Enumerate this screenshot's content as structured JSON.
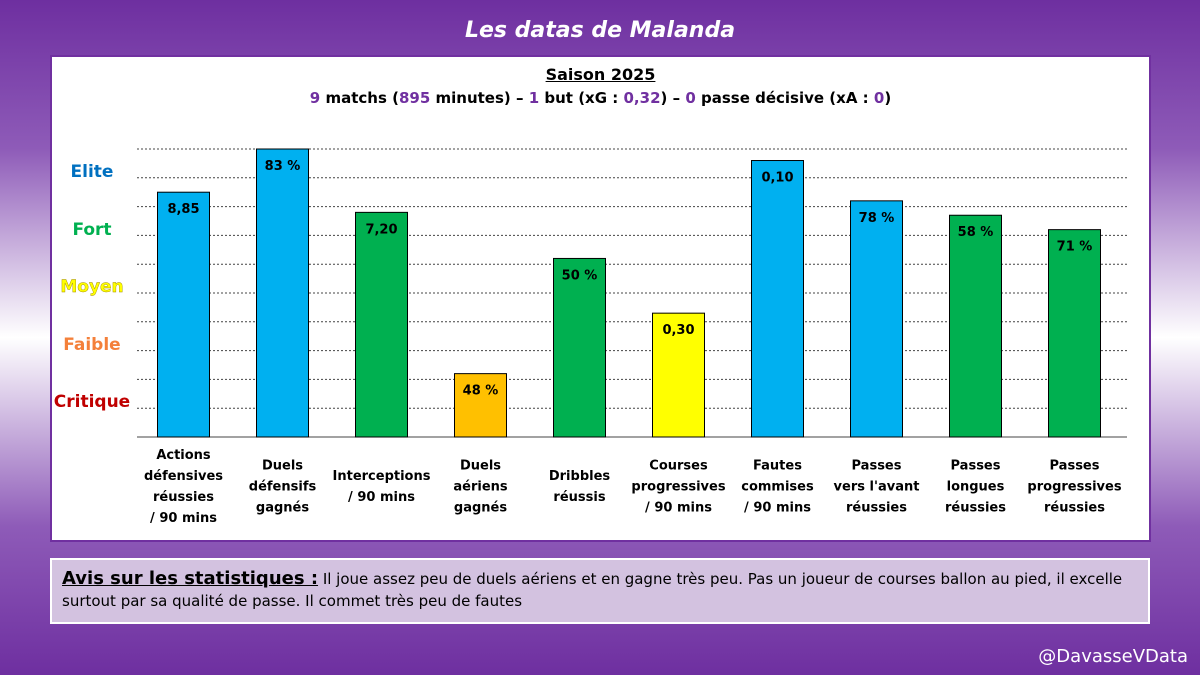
{
  "title": "Les datas de Malanda",
  "season": "Saison 2025",
  "summary": {
    "matches": "9",
    "matches_label": "matchs (",
    "minutes": "895",
    "minutes_label": "minutes) –",
    "goals": "1",
    "goals_label": "but (xG :",
    "xg": "0,32",
    "mid_label": ") –",
    "assists": "0",
    "assists_label": "passe décisive (xA :",
    "xa": "0",
    "end_label": ")"
  },
  "chart_data": {
    "type": "bar",
    "levels": [
      {
        "name": "Elite",
        "color": "#0070c0"
      },
      {
        "name": "Fort",
        "color": "#00b050"
      },
      {
        "name": "Moyen",
        "color": "#ffff00"
      },
      {
        "name": "Faible",
        "color": "#f4803a"
      },
      {
        "name": "Critique",
        "color": "#c00000"
      }
    ],
    "ylim": [
      0,
      10
    ],
    "gridlines": 10,
    "bars": [
      {
        "label": [
          "Actions",
          "défensives",
          "réussies",
          "/ 90 mins"
        ],
        "value_label": "8,85",
        "level": 8.5,
        "color": "#00b0f0"
      },
      {
        "label": [
          "Duels",
          "défensifs",
          "gagnés"
        ],
        "value_label": "83 %",
        "level": 10.0,
        "color": "#00b0f0"
      },
      {
        "label": [
          "Interceptions",
          "/ 90 mins"
        ],
        "value_label": "7,20",
        "level": 7.8,
        "color": "#00b050"
      },
      {
        "label": [
          "Duels",
          "aériens",
          "gagnés"
        ],
        "value_label": "48 %",
        "level": 2.2,
        "color": "#ffc000"
      },
      {
        "label": [
          "Dribbles",
          "réussis"
        ],
        "value_label": "50 %",
        "level": 6.2,
        "color": "#00b050"
      },
      {
        "label": [
          "Courses",
          "progressives",
          "/ 90 mins"
        ],
        "value_label": "0,30",
        "level": 4.3,
        "color": "#ffff00"
      },
      {
        "label": [
          "Fautes",
          "commises",
          "/ 90 mins"
        ],
        "value_label": "0,10",
        "level": 9.6,
        "color": "#00b0f0"
      },
      {
        "label": [
          "Passes",
          "vers l'avant",
          "réussies"
        ],
        "value_label": "78 %",
        "level": 8.2,
        "color": "#00b0f0"
      },
      {
        "label": [
          "Passes",
          "longues",
          "réussies"
        ],
        "value_label": "58 %",
        "level": 7.7,
        "color": "#00b050"
      },
      {
        "label": [
          "Passes",
          "progressives",
          "réussies"
        ],
        "value_label": "71 %",
        "level": 7.2,
        "color": "#00b050"
      }
    ]
  },
  "comment": {
    "heading": "Avis sur les statistiques :",
    "text": "Il joue assez peu de duels aériens et en gagne très peu. Pas un joueur de courses ballon au pied, il excelle surtout par sa qualité de passe. Il commet très peu de fautes"
  },
  "credit": "@DavasseVData"
}
